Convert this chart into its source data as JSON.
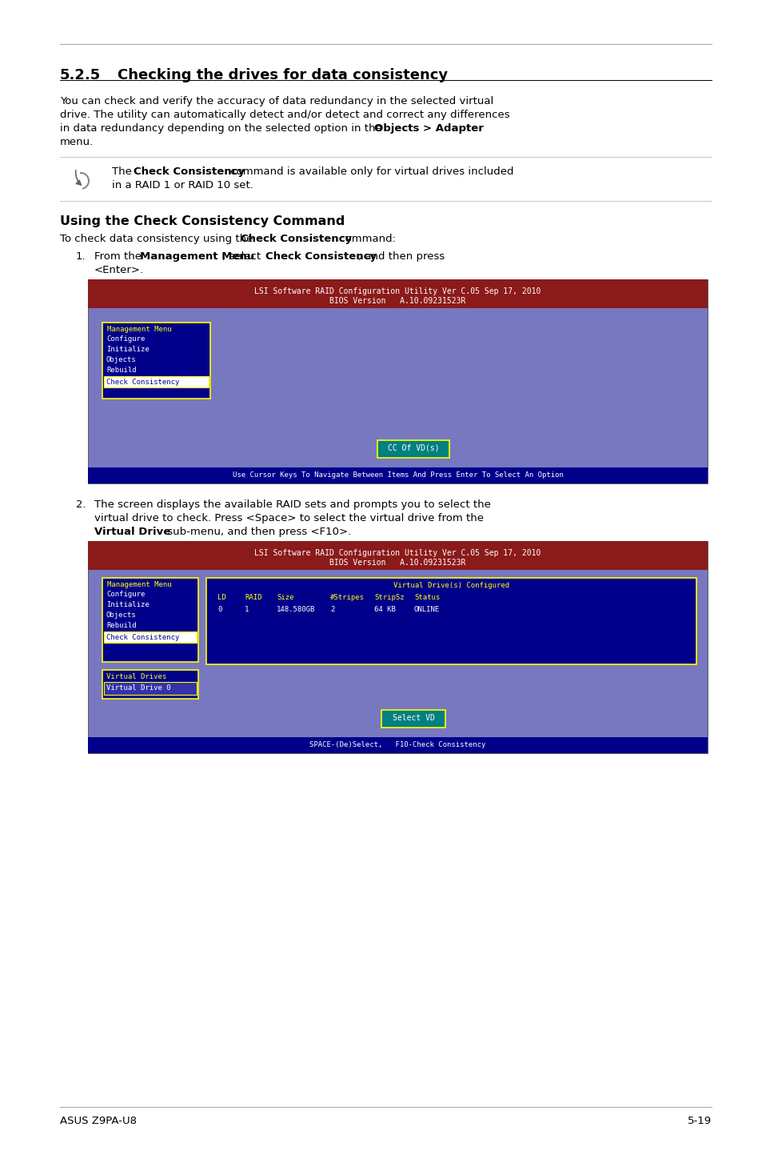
{
  "page_bg": "#ffffff",
  "screen1": {
    "header_bg": "#8b1a1a",
    "header_line1": "LSI Software RAID Configuration Utility Ver C.05 Sep 17, 2010",
    "header_line2": "BIOS Version   A.10.09231523R",
    "body_bg": "#7878c0",
    "menu_bg": "#00008b",
    "menu_border": "#ffff00",
    "menu_title": "Management Menu",
    "menu_title_color": "#ffff00",
    "menu_items": [
      "Configure",
      "Initialize",
      "Objects",
      "Rebuild"
    ],
    "menu_selected": "Check Consistency",
    "menu_selected_bg": "#ffffff",
    "menu_selected_fg": "#00008b",
    "menu_items_color": "#ffffff",
    "button_bg": "#008080",
    "button_text": "CC Of VD(s)",
    "button_border": "#ffff00",
    "button_fg": "#ffffff",
    "status_bg": "#00008b",
    "status_text": "Use Cursor Keys To Navigate Between Items And Press Enter To Select An Option",
    "status_fg": "#ffffff"
  },
  "screen2": {
    "header_bg": "#8b1a1a",
    "header_line1": "LSI Software RAID Configuration Utility Ver C.05 Sep 17, 2010",
    "header_line2": "BIOS Version   A.10.09231523R",
    "body_bg": "#7878c0",
    "menu_bg": "#00008b",
    "menu_border": "#ffff00",
    "menu_title": "Management Menu",
    "menu_title_color": "#ffff00",
    "menu_items": [
      "Configure",
      "Initialize",
      "Objects",
      "Rebuild"
    ],
    "menu_selected": "Check Consistency",
    "menu_selected_bg": "#ffffff",
    "menu_selected_fg": "#00008b",
    "menu_items_color": "#ffffff",
    "vd_table_bg": "#00008b",
    "vd_table_border": "#ffff00",
    "vd_table_title": "Virtual Drive(s) Configured",
    "vd_table_title_color": "#ffff00",
    "vd_headers": [
      "LD",
      "RAID",
      "Size",
      "#Stripes",
      "StripSz",
      "Status"
    ],
    "vd_headers_color": "#ffff00",
    "vd_row": [
      "0",
      "1",
      "148.580GB",
      "2",
      "64 KB",
      "ONLINE"
    ],
    "vd_row_color": "#ffffff",
    "vdrives_box_bg": "#00008b",
    "vdrives_box_border": "#ffff00",
    "vdrives_title": "Virtual Drives",
    "vdrives_title_color": "#ffff00",
    "vdrives_selected": "Virtual Drive 0",
    "vdrives_selected_bg": "#3333aa",
    "vdrives_selected_fg": "#ffffff",
    "button_bg": "#008080",
    "button_text": "Select VD",
    "button_border": "#ffff00",
    "button_fg": "#ffffff",
    "status_bg": "#00008b",
    "status_text": "SPACE-(De)Select,   F10-Check Consistency",
    "status_fg": "#ffffff"
  },
  "footer_left": "ASUS Z9PA-U8",
  "footer_right": "5-19"
}
